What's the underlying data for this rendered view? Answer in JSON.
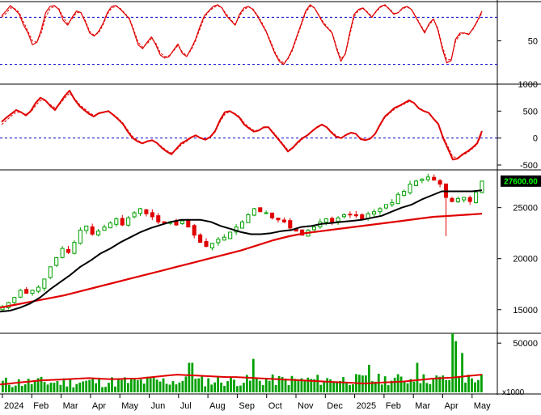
{
  "chart_data": [
    {
      "type": "line",
      "panel": "stochastic",
      "ylim": [
        0,
        100
      ],
      "y_ticks": [
        50
      ],
      "ref_lines": [
        80,
        20
      ],
      "series": [
        {
          "color": "#e00000",
          "style": "solid",
          "values": [
            82,
            88,
            95,
            90,
            84,
            70,
            60,
            45,
            48,
            64,
            86,
            94,
            95,
            90,
            76,
            70,
            80,
            88,
            86,
            74,
            60,
            56,
            62,
            72,
            86,
            94,
            95,
            90,
            84,
            78,
            62,
            45,
            40,
            48,
            55,
            45,
            32,
            28,
            30,
            38,
            46,
            34,
            30,
            40,
            52,
            68,
            82,
            88,
            94,
            96,
            92,
            82,
            76,
            70,
            84,
            92,
            94,
            90,
            82,
            72,
            62,
            48,
            34,
            24,
            20,
            28,
            40,
            56,
            72,
            88,
            96,
            92,
            82,
            72,
            66,
            60,
            40,
            24,
            34,
            60,
            84,
            90,
            92,
            86,
            80,
            88,
            94,
            96,
            90,
            84,
            86,
            92,
            94,
            90,
            80,
            70,
            60,
            72,
            78,
            64,
            40,
            22,
            25,
            52,
            60,
            60,
            58,
            66,
            76,
            88
          ]
        },
        {
          "color": "#e00000",
          "style": "dashed",
          "values": [
            80,
            85,
            92,
            91,
            86,
            74,
            62,
            50,
            48,
            60,
            80,
            91,
            94,
            91,
            80,
            72,
            78,
            86,
            86,
            76,
            62,
            57,
            60,
            70,
            84,
            92,
            94,
            91,
            85,
            79,
            64,
            48,
            42,
            46,
            53,
            47,
            35,
            30,
            31,
            37,
            44,
            36,
            31,
            38,
            50,
            65,
            80,
            87,
            92,
            95,
            92,
            84,
            77,
            71,
            82,
            90,
            93,
            91,
            83,
            74,
            63,
            50,
            36,
            26,
            22,
            27,
            38,
            54,
            70,
            86,
            94,
            92,
            83,
            74,
            67,
            61,
            42,
            27,
            33,
            57,
            81,
            89,
            91,
            87,
            81,
            87,
            93,
            95,
            91,
            85,
            86,
            91,
            93,
            90,
            81,
            71,
            62,
            70,
            77,
            66,
            43,
            26,
            26,
            49,
            58,
            60,
            59,
            65,
            75,
            86
          ]
        }
      ]
    },
    {
      "type": "line",
      "panel": "macd",
      "ylim": [
        -500,
        1000
      ],
      "y_ticks": [
        1000,
        500,
        0,
        -500
      ],
      "ref_lines": [
        0
      ],
      "series": [
        {
          "color": "#e00000",
          "style": "solid",
          "values": [
            300,
            380,
            450,
            520,
            480,
            420,
            500,
            650,
            750,
            700,
            600,
            520,
            650,
            780,
            880,
            720,
            600,
            520,
            450,
            400,
            460,
            480,
            500,
            430,
            350,
            260,
            120,
            0,
            -60,
            -100,
            -60,
            -40,
            -90,
            -180,
            -250,
            -300,
            -200,
            -100,
            -50,
            10,
            50,
            0,
            -30,
            20,
            130,
            330,
            480,
            500,
            450,
            380,
            250,
            180,
            120,
            140,
            200,
            200,
            90,
            -20,
            -130,
            -250,
            -180,
            -80,
            0,
            50,
            130,
            200,
            250,
            200,
            100,
            20,
            0,
            60,
            100,
            80,
            -20,
            -40,
            -10,
            80,
            250,
            400,
            480,
            560,
            600,
            650,
            700,
            650,
            550,
            500,
            470,
            360,
            260,
            0,
            -200,
            -400,
            -380,
            -300,
            -250,
            -180,
            -100,
            130
          ]
        },
        {
          "color": "#e00000",
          "style": "dashed",
          "values": [
            250,
            330,
            410,
            480,
            480,
            440,
            480,
            600,
            700,
            700,
            620,
            560,
            630,
            740,
            830,
            740,
            630,
            550,
            480,
            420,
            450,
            470,
            490,
            440,
            370,
            280,
            150,
            30,
            -40,
            -90,
            -70,
            -50,
            -80,
            -160,
            -230,
            -280,
            -220,
            -130,
            -70,
            0,
            40,
            10,
            -20,
            10,
            110,
            300,
            440,
            490,
            460,
            400,
            280,
            200,
            140,
            140,
            190,
            200,
            110,
            0,
            -110,
            -220,
            -190,
            -100,
            -20,
            40,
            120,
            190,
            240,
            210,
            120,
            40,
            10,
            50,
            90,
            80,
            0,
            -30,
            -10,
            70,
            230,
            380,
            460,
            540,
            590,
            630,
            680,
            650,
            560,
            510,
            470,
            370,
            270,
            30,
            -160,
            -350,
            -360,
            -320,
            -270,
            -200,
            -120,
            90
          ]
        }
      ]
    },
    {
      "type": "candlestick",
      "panel": "price",
      "ylim": [
        13000,
        28700
      ],
      "y_ticks": [
        25000,
        20000,
        15000
      ],
      "last_price_label": "27600.00",
      "close": [
        15300,
        15700,
        16200,
        16900,
        16600,
        16900,
        17200,
        18000,
        19200,
        20100,
        21000,
        20600,
        21600,
        22800,
        23200,
        22400,
        22700,
        23100,
        23500,
        23900,
        23300,
        24000,
        24500,
        24900,
        24400,
        24100,
        23600,
        23500,
        23600,
        23300,
        23700,
        23100,
        22300,
        21600,
        21200,
        21500,
        21900,
        22100,
        22600,
        23100,
        23600,
        24300,
        24900,
        24600,
        24500,
        24000,
        23800,
        23600,
        23000,
        22700,
        22300,
        22800,
        23100,
        23600,
        23900,
        23600,
        24000,
        24300,
        24300,
        24200,
        23800,
        24400,
        24600,
        24900,
        25300,
        25500,
        26300,
        26600,
        27300,
        27600,
        27800,
        28000,
        27700,
        27300,
        26000,
        25600,
        25900,
        26000,
        25600,
        26500,
        27600
      ],
      "ma_black": [
        14800,
        14900,
        15200,
        15600,
        16200,
        17000,
        17700,
        18400,
        19200,
        19800,
        20500,
        21000,
        21600,
        22100,
        22600,
        23000,
        23300,
        23600,
        23800,
        23800,
        23800,
        23600,
        23200,
        22900,
        22600,
        22400,
        22400,
        22500,
        22700,
        22800,
        23100,
        23200,
        23400,
        23500,
        23600,
        23700,
        23800,
        24000,
        24200,
        24600,
        25000,
        25300,
        25800,
        26200,
        26600,
        26600,
        26600,
        26600,
        26700
      ],
      "ma_red": [
        15200,
        15500,
        15800,
        16100,
        16400,
        16800,
        17200,
        17600,
        18000,
        18400,
        18800,
        19200,
        19600,
        20000,
        20400,
        20800,
        21300,
        21800,
        22200,
        22500,
        22700,
        22900,
        23100,
        23300,
        23500,
        23700,
        23900,
        24100,
        24200,
        24300,
        24400
      ],
      "wick_events": [
        {
          "index": 74,
          "low": 22200
        }
      ]
    },
    {
      "type": "bar",
      "panel": "volume",
      "ylim": [
        0,
        60000
      ],
      "y_ticks": [
        50000
      ],
      "unit_label": "x1000",
      "spikes": [
        {
          "pos": 0.39,
          "value": 30000
        },
        {
          "pos": 0.52,
          "value": 34000
        },
        {
          "pos": 0.76,
          "value": 28000
        },
        {
          "pos": 0.86,
          "value": 30000
        },
        {
          "pos": 0.933,
          "value": 60000
        },
        {
          "pos": 0.94,
          "value": 52000
        },
        {
          "pos": 0.955,
          "value": 40000
        }
      ],
      "ma_red": [
        8000,
        9000,
        10000,
        11000,
        12000,
        12500,
        13000,
        13500,
        14000,
        14500,
        14000,
        13500,
        13500,
        14000,
        14000,
        15000,
        16000,
        17000,
        18000,
        17500,
        17000,
        16500,
        16000,
        15500,
        15500,
        15000,
        14500,
        14000,
        13500,
        13000,
        12500,
        12000,
        11500,
        11000,
        10500,
        10000,
        9500,
        9000,
        9500,
        10000,
        10500,
        11000,
        12000,
        13000,
        14000,
        14500,
        15000,
        16000,
        17000,
        18000
      ]
    }
  ],
  "x_axis": {
    "labels": [
      "2024",
      "Feb",
      "Mar",
      "Apr",
      "May",
      "Jun",
      "Jul",
      "Aug",
      "Sep",
      "Oct",
      "Nov",
      "Dec",
      "2025",
      "Feb",
      "Mar",
      "Apr",
      "May"
    ]
  }
}
